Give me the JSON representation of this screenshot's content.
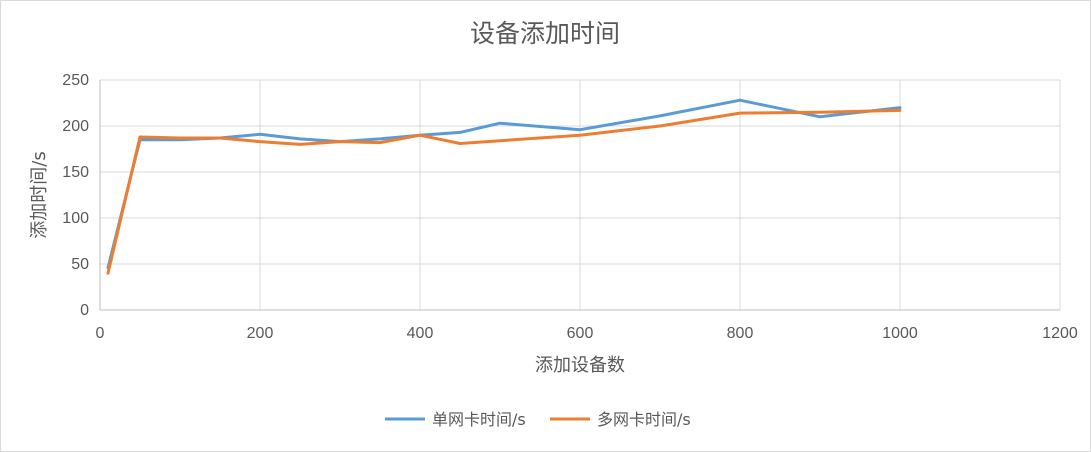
{
  "chart_data": {
    "type": "line",
    "title": "设备添加时间",
    "xlabel": "添加设备数",
    "ylabel": "添加时间/s",
    "xlim": [
      0,
      1200
    ],
    "ylim": [
      0,
      250
    ],
    "x_ticks": [
      0,
      200,
      400,
      600,
      800,
      1000,
      1200
    ],
    "y_ticks": [
      0,
      50,
      100,
      150,
      200,
      250
    ],
    "grid": true,
    "legend_position": "bottom",
    "series": [
      {
        "name": "单网卡时间/s",
        "color": "#5b9bd5",
        "x": [
          10,
          50,
          100,
          150,
          200,
          250,
          300,
          350,
          400,
          450,
          500,
          600,
          700,
          800,
          900,
          1000
        ],
        "y": [
          46,
          185,
          185,
          187,
          191,
          186,
          183,
          186,
          190,
          193,
          203,
          196,
          211,
          228,
          210,
          220
        ]
      },
      {
        "name": "多网卡时间/s",
        "color": "#ed7d31",
        "x": [
          10,
          50,
          100,
          150,
          200,
          250,
          300,
          350,
          400,
          450,
          500,
          600,
          700,
          800,
          900,
          1000
        ],
        "y": [
          40,
          188,
          187,
          187,
          183,
          180,
          183,
          182,
          190,
          181,
          184,
          190,
          200,
          214,
          215,
          217
        ]
      }
    ]
  }
}
